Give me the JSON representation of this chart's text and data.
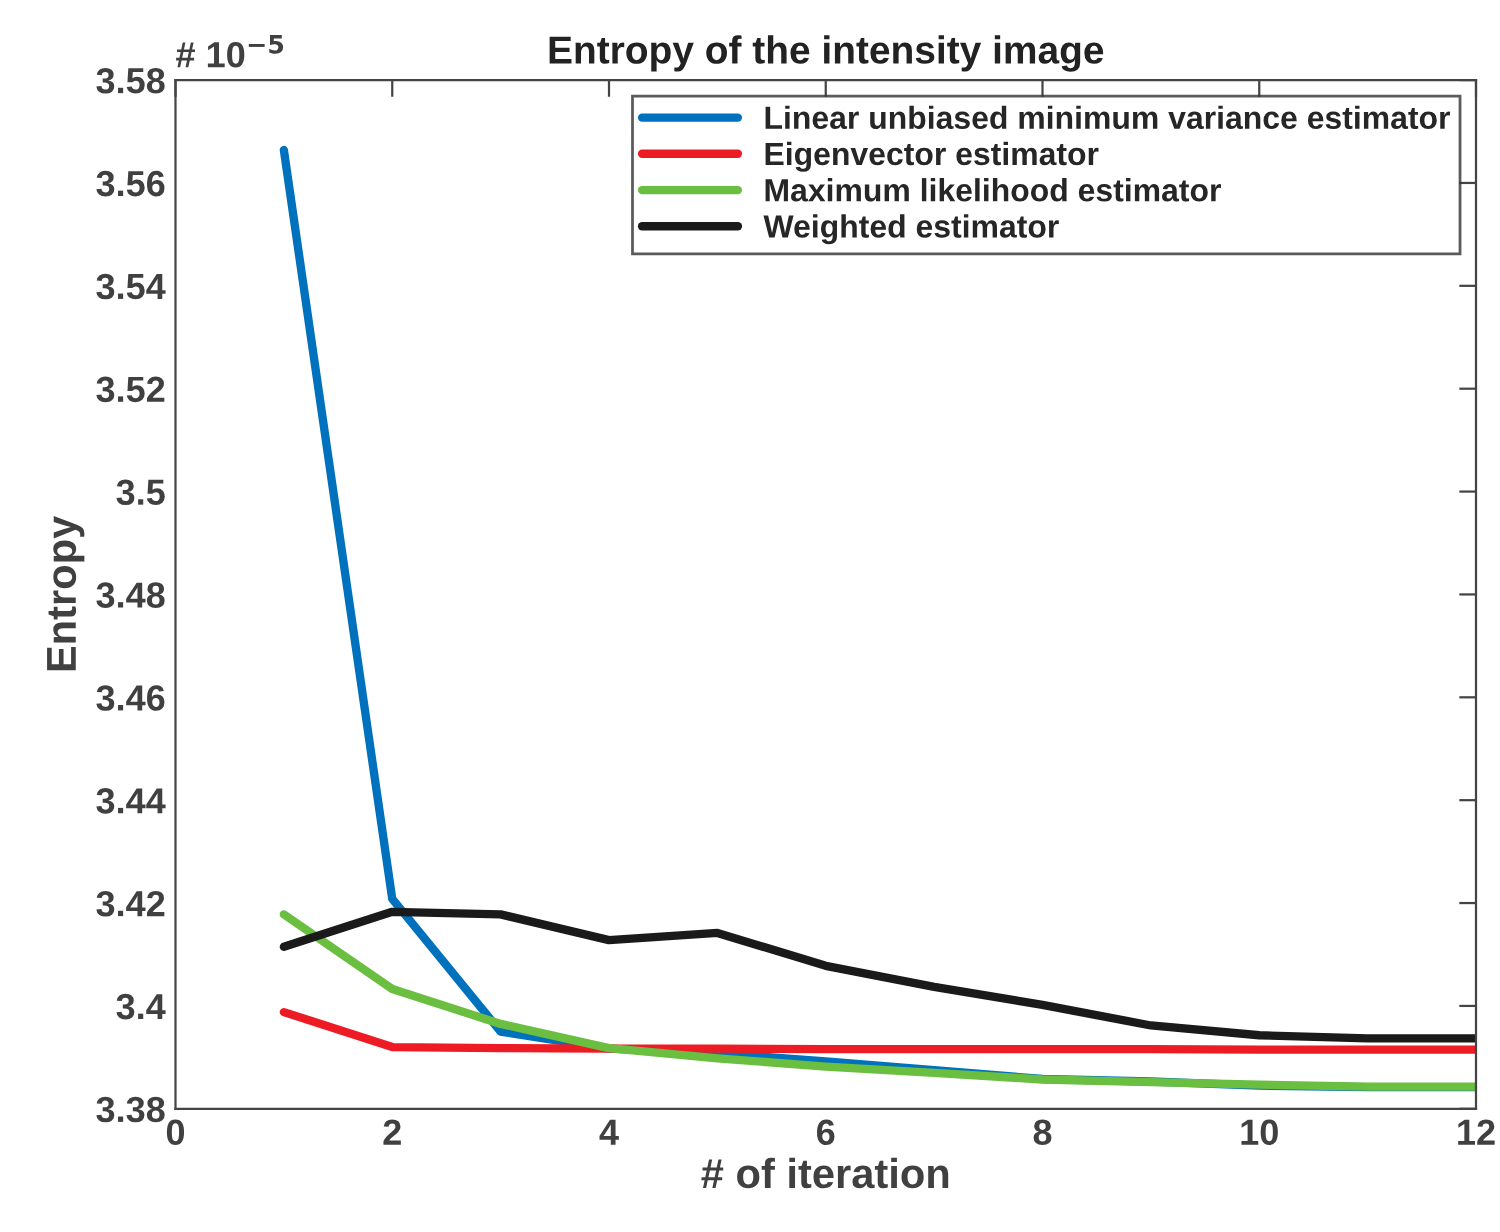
{
  "chart_data": {
    "type": "line",
    "title": "Entropy of the intensity image",
    "xlabel": "# of iteration",
    "ylabel": "Entropy",
    "x": [
      1,
      2,
      3,
      4,
      5,
      6,
      7,
      8,
      9,
      10,
      11,
      12
    ],
    "series": [
      {
        "name": "Linear unbiased minimum variance estimator",
        "color": "#0072bd",
        "values": [
          3.5664,
          3.4208,
          3.395,
          3.3917,
          3.3908,
          3.3892,
          3.3875,
          3.3858,
          3.3853,
          3.3845,
          3.3842,
          3.3842
        ]
      },
      {
        "name": "Eigenvector estimator",
        "color": "#ed1c24",
        "values": [
          3.3988,
          3.392,
          3.3918,
          3.3917,
          3.3917,
          3.3916,
          3.3916,
          3.3916,
          3.3916,
          3.3915,
          3.3915,
          3.3915
        ]
      },
      {
        "name": "Maximum likelihood estimator",
        "color": "#6abf40",
        "values": [
          3.4178,
          3.4033,
          3.3965,
          3.3918,
          3.3898,
          3.3882,
          3.387,
          3.3857,
          3.3852,
          3.3847,
          3.3843,
          3.3843
        ]
      },
      {
        "name": "Weighted estimator",
        "color": "#1a1a1a",
        "values": [
          3.4115,
          3.4183,
          3.4178,
          3.4128,
          3.4142,
          3.4078,
          3.4037,
          3.4002,
          3.3962,
          3.3943,
          3.3937,
          3.3937
        ]
      }
    ],
    "xlim": [
      0,
      12
    ],
    "xticks": [
      0,
      2,
      4,
      6,
      8,
      10,
      12
    ],
    "ylim": [
      3.38,
      3.58
    ],
    "yticks": [
      3.38,
      3.4,
      3.42,
      3.44,
      3.46,
      3.48,
      3.5,
      3.52,
      3.54,
      3.56,
      3.58
    ],
    "annotations": [
      "# 10$^{−5}$"
    ],
    "grid": false,
    "legend": "top right",
    "marker": "none",
    "line_style": "solid"
  }
}
